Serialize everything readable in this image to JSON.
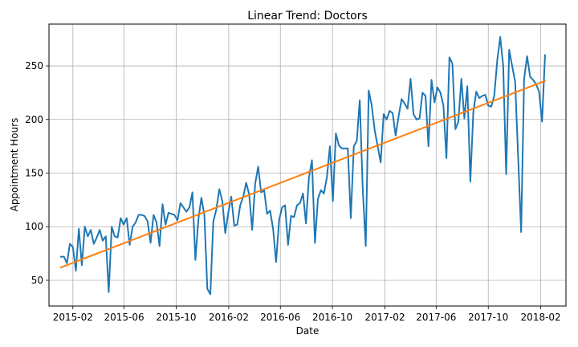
{
  "chart_data": {
    "type": "line",
    "title": "Linear Trend: Doctors",
    "xlabel": "Date",
    "ylabel": "Appointment Hours",
    "grid": true,
    "colors": {
      "series": "#1f77b4",
      "trend": "#ff7f0e",
      "grid": "#b0b0b0"
    },
    "xlim": [
      "2014-12-07",
      "2018-04-01"
    ],
    "ylim": [
      26,
      289
    ],
    "x_ticks": [
      "2015-02-01",
      "2015-06-01",
      "2015-10-01",
      "2016-02-01",
      "2016-06-01",
      "2016-10-01",
      "2017-02-01",
      "2017-06-01",
      "2017-10-01",
      "2018-02-01"
    ],
    "x_tick_labels": [
      "2015-02",
      "2015-06",
      "2015-10",
      "2016-02",
      "2016-06",
      "2016-10",
      "2017-02",
      "2017-06",
      "2017-10",
      "2018-02"
    ],
    "y_ticks": [
      50,
      100,
      150,
      200,
      250
    ],
    "y_tick_labels": [
      "50",
      "100",
      "150",
      "200",
      "250"
    ],
    "series": [
      {
        "name": "",
        "style": "line",
        "points": [
          [
            "2015-01-04",
            72
          ],
          [
            "2015-01-11",
            72
          ],
          [
            "2015-01-18",
            66
          ],
          [
            "2015-01-25",
            84
          ],
          [
            "2015-02-01",
            81
          ],
          [
            "2015-02-08",
            59
          ],
          [
            "2015-02-15",
            98
          ],
          [
            "2015-02-22",
            64
          ],
          [
            "2015-03-01",
            100
          ],
          [
            "2015-03-08",
            91
          ],
          [
            "2015-03-15",
            97
          ],
          [
            "2015-03-22",
            84
          ],
          [
            "2015-03-29",
            90
          ],
          [
            "2015-04-05",
            97
          ],
          [
            "2015-04-12",
            87
          ],
          [
            "2015-04-19",
            91
          ],
          [
            "2015-04-26",
            39
          ],
          [
            "2015-05-03",
            100
          ],
          [
            "2015-05-10",
            91
          ],
          [
            "2015-05-17",
            90
          ],
          [
            "2015-05-24",
            108
          ],
          [
            "2015-05-31",
            102
          ],
          [
            "2015-06-07",
            108
          ],
          [
            "2015-06-14",
            83
          ],
          [
            "2015-06-21",
            100
          ],
          [
            "2015-06-28",
            104
          ],
          [
            "2015-07-05",
            111
          ],
          [
            "2015-07-12",
            111
          ],
          [
            "2015-07-19",
            110
          ],
          [
            "2015-07-26",
            105
          ],
          [
            "2015-08-02",
            85
          ],
          [
            "2015-08-09",
            111
          ],
          [
            "2015-08-16",
            104
          ],
          [
            "2015-08-23",
            82
          ],
          [
            "2015-08-30",
            121
          ],
          [
            "2015-09-06",
            102
          ],
          [
            "2015-09-13",
            113
          ],
          [
            "2015-09-20",
            112
          ],
          [
            "2015-09-27",
            111
          ],
          [
            "2015-10-04",
            106
          ],
          [
            "2015-10-11",
            122
          ],
          [
            "2015-10-18",
            118
          ],
          [
            "2015-10-25",
            114
          ],
          [
            "2015-11-01",
            118
          ],
          [
            "2015-11-08",
            132
          ],
          [
            "2015-11-15",
            69
          ],
          [
            "2015-11-22",
            107
          ],
          [
            "2015-11-29",
            127
          ],
          [
            "2015-12-06",
            111
          ],
          [
            "2015-12-13",
            42
          ],
          [
            "2015-12-20",
            37
          ],
          [
            "2015-12-27",
            105
          ],
          [
            "2016-01-03",
            116
          ],
          [
            "2016-01-10",
            135
          ],
          [
            "2016-01-17",
            124
          ],
          [
            "2016-01-24",
            94
          ],
          [
            "2016-01-31",
            113
          ],
          [
            "2016-02-07",
            128
          ],
          [
            "2016-02-14",
            101
          ],
          [
            "2016-02-21",
            102
          ],
          [
            "2016-02-28",
            120
          ],
          [
            "2016-03-06",
            128
          ],
          [
            "2016-03-13",
            141
          ],
          [
            "2016-03-20",
            130
          ],
          [
            "2016-03-27",
            97
          ],
          [
            "2016-04-03",
            140
          ],
          [
            "2016-04-10",
            156
          ],
          [
            "2016-04-17",
            132
          ],
          [
            "2016-04-24",
            134
          ],
          [
            "2016-05-01",
            112
          ],
          [
            "2016-05-08",
            115
          ],
          [
            "2016-05-15",
            98
          ],
          [
            "2016-05-22",
            67
          ],
          [
            "2016-05-29",
            106
          ],
          [
            "2016-06-05",
            118
          ],
          [
            "2016-06-12",
            120
          ],
          [
            "2016-06-19",
            83
          ],
          [
            "2016-06-26",
            110
          ],
          [
            "2016-07-03",
            109
          ],
          [
            "2016-07-10",
            120
          ],
          [
            "2016-07-17",
            122
          ],
          [
            "2016-07-24",
            131
          ],
          [
            "2016-07-31",
            103
          ],
          [
            "2016-08-07",
            146
          ],
          [
            "2016-08-14",
            162
          ],
          [
            "2016-08-21",
            85
          ],
          [
            "2016-08-28",
            126
          ],
          [
            "2016-09-04",
            134
          ],
          [
            "2016-09-11",
            131
          ],
          [
            "2016-09-18",
            146
          ],
          [
            "2016-09-25",
            175
          ],
          [
            "2016-10-02",
            124
          ],
          [
            "2016-10-09",
            187
          ],
          [
            "2016-10-16",
            176
          ],
          [
            "2016-10-23",
            173
          ],
          [
            "2016-10-30",
            173
          ],
          [
            "2016-11-06",
            173
          ],
          [
            "2016-11-13",
            108
          ],
          [
            "2016-11-20",
            175
          ],
          [
            "2016-11-27",
            180
          ],
          [
            "2016-12-04",
            218
          ],
          [
            "2016-12-11",
            135
          ],
          [
            "2016-12-18",
            82
          ],
          [
            "2016-12-25",
            227
          ],
          [
            "2017-01-01",
            213
          ],
          [
            "2017-01-08",
            190
          ],
          [
            "2017-01-15",
            175
          ],
          [
            "2017-01-22",
            160
          ],
          [
            "2017-01-29",
            205
          ],
          [
            "2017-02-05",
            200
          ],
          [
            "2017-02-12",
            208
          ],
          [
            "2017-02-19",
            206
          ],
          [
            "2017-02-26",
            185
          ],
          [
            "2017-03-05",
            203
          ],
          [
            "2017-03-12",
            219
          ],
          [
            "2017-03-19",
            215
          ],
          [
            "2017-03-26",
            210
          ],
          [
            "2017-04-02",
            238
          ],
          [
            "2017-04-09",
            205
          ],
          [
            "2017-04-16",
            200
          ],
          [
            "2017-04-23",
            201
          ],
          [
            "2017-04-30",
            225
          ],
          [
            "2017-05-07",
            222
          ],
          [
            "2017-05-14",
            175
          ],
          [
            "2017-05-21",
            237
          ],
          [
            "2017-05-28",
            216
          ],
          [
            "2017-06-04",
            230
          ],
          [
            "2017-06-11",
            225
          ],
          [
            "2017-06-18",
            213
          ],
          [
            "2017-06-25",
            164
          ],
          [
            "2017-07-02",
            258
          ],
          [
            "2017-07-09",
            252
          ],
          [
            "2017-07-16",
            191
          ],
          [
            "2017-07-23",
            198
          ],
          [
            "2017-07-30",
            238
          ],
          [
            "2017-08-06",
            201
          ],
          [
            "2017-08-13",
            231
          ],
          [
            "2017-08-20",
            142
          ],
          [
            "2017-08-27",
            207
          ],
          [
            "2017-09-03",
            226
          ],
          [
            "2017-09-10",
            220
          ],
          [
            "2017-09-17",
            222
          ],
          [
            "2017-09-24",
            223
          ],
          [
            "2017-10-01",
            213
          ],
          [
            "2017-10-08",
            212
          ],
          [
            "2017-10-15",
            222
          ],
          [
            "2017-10-22",
            255
          ],
          [
            "2017-10-29",
            277
          ],
          [
            "2017-11-05",
            250
          ],
          [
            "2017-11-12",
            149
          ],
          [
            "2017-11-19",
            265
          ],
          [
            "2017-11-26",
            250
          ],
          [
            "2017-12-03",
            235
          ],
          [
            "2017-12-10",
            165
          ],
          [
            "2017-12-17",
            95
          ],
          [
            "2017-12-24",
            238
          ],
          [
            "2017-12-31",
            259
          ],
          [
            "2018-01-07",
            240
          ],
          [
            "2018-01-14",
            237
          ],
          [
            "2018-01-21",
            233
          ],
          [
            "2018-01-28",
            226
          ],
          [
            "2018-02-04",
            198
          ],
          [
            "2018-02-11",
            260
          ]
        ]
      },
      {
        "name": "",
        "style": "linear-trend",
        "points": [
          [
            "2015-01-04",
            62
          ],
          [
            "2018-02-11",
            236
          ]
        ]
      }
    ]
  }
}
